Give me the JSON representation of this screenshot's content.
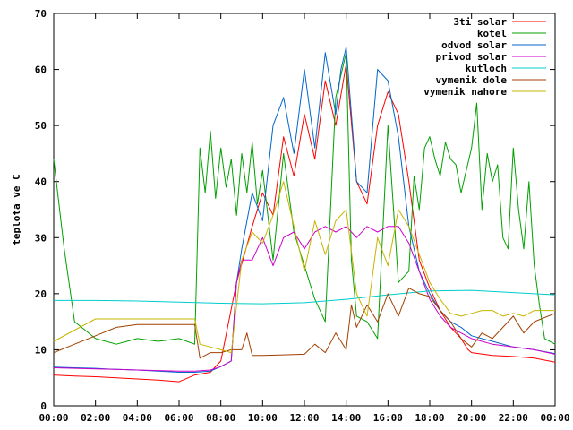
{
  "chart_data": {
    "type": "line",
    "title": "",
    "xlabel": "",
    "ylabel": "teplota ve C",
    "xlim": [
      "00:00",
      "24:00"
    ],
    "ylim": [
      0,
      70
    ],
    "x_ticks": [
      "00:00",
      "02:00",
      "04:00",
      "06:00",
      "08:00",
      "10:00",
      "12:00",
      "14:00",
      "16:00",
      "18:00",
      "20:00",
      "22:00",
      "00:00"
    ],
    "y_ticks": [
      "0",
      "10",
      "20",
      "30",
      "40",
      "50",
      "60",
      "70"
    ],
    "grid": false,
    "legend_position": "top-right",
    "series": [
      {
        "name": "3ti solar",
        "color": "#ff0000",
        "x": [
          "00:00",
          "01:00",
          "02:00",
          "03:00",
          "04:00",
          "05:00",
          "06:00",
          "06:45",
          "07:30",
          "08:00",
          "08:45",
          "09:30",
          "10:00",
          "10:30",
          "11:00",
          "11:30",
          "12:00",
          "12:30",
          "13:00",
          "13:30",
          "14:00",
          "14:30",
          "15:00",
          "15:30",
          "16:00",
          "16:30",
          "17:00",
          "17:30",
          "18:00",
          "18:30",
          "19:00",
          "19:30",
          "19:50",
          "20:00",
          "21:00",
          "22:00",
          "23:00",
          "24:00"
        ],
        "y": [
          5.5,
          5.3,
          5.2,
          5.0,
          4.8,
          4.6,
          4.3,
          5.5,
          6.0,
          8,
          22,
          32,
          38,
          34,
          48,
          41,
          52,
          44,
          58,
          50,
          61,
          40,
          36,
          50,
          56,
          52,
          40,
          26,
          21,
          17,
          14,
          12,
          10,
          9.5,
          9.0,
          8.8,
          8.5,
          7.8
        ]
      },
      {
        "name": "kotel",
        "color": "#00a000",
        "x": [
          "00:00",
          "00:30",
          "01:00",
          "02:00",
          "03:00",
          "04:00",
          "05:00",
          "06:00",
          "06:45",
          "07:00",
          "07:15",
          "07:30",
          "07:45",
          "08:00",
          "08:15",
          "08:30",
          "08:45",
          "09:00",
          "09:15",
          "09:30",
          "09:45",
          "10:00",
          "10:30",
          "11:00",
          "11:30",
          "12:00",
          "12:30",
          "13:00",
          "13:30",
          "14:00",
          "14:15",
          "14:30",
          "15:00",
          "15:30",
          "16:00",
          "16:30",
          "17:00",
          "17:15",
          "17:30",
          "17:45",
          "18:00",
          "18:15",
          "18:30",
          "18:45",
          "19:00",
          "19:15",
          "19:30",
          "19:45",
          "20:00",
          "20:15",
          "20:30",
          "20:45",
          "21:00",
          "21:15",
          "21:30",
          "21:45",
          "22:00",
          "22:15",
          "22:30",
          "22:45",
          "23:00",
          "23:15",
          "23:30",
          "24:00"
        ],
        "y": [
          44,
          28,
          15,
          12,
          11,
          12,
          11.5,
          12,
          11,
          46,
          38,
          49,
          37,
          46,
          39,
          44,
          34,
          45,
          38,
          47,
          36,
          42,
          26,
          45,
          31,
          25,
          19,
          15,
          55,
          63,
          26,
          16,
          15,
          12,
          50,
          22,
          24,
          41,
          35,
          46,
          48,
          44,
          41,
          47,
          44,
          43,
          38,
          42,
          46,
          54,
          35,
          45,
          40,
          43,
          30,
          28,
          46,
          35,
          28,
          40,
          25,
          18,
          12,
          11
        ]
      },
      {
        "name": "odvod solar",
        "color": "#0066cc",
        "x": [
          "00:00",
          "01:00",
          "02:00",
          "03:00",
          "04:00",
          "05:00",
          "06:00",
          "06:45",
          "07:30",
          "08:00",
          "08:30",
          "08:45",
          "09:00",
          "09:30",
          "10:00",
          "10:30",
          "11:00",
          "11:30",
          "12:00",
          "12:30",
          "13:00",
          "13:30",
          "13:45",
          "14:00",
          "14:30",
          "15:00",
          "15:30",
          "16:00",
          "16:30",
          "17:00",
          "17:30",
          "18:00",
          "18:30",
          "19:00",
          "19:30",
          "20:00",
          "21:00",
          "22:00",
          "23:00",
          "24:00"
        ],
        "y": [
          6.9,
          6.8,
          6.7,
          6.5,
          6.4,
          6.2,
          6.0,
          6.0,
          6.2,
          7,
          8,
          22,
          28,
          38,
          33,
          50,
          55,
          45,
          60,
          46,
          63,
          52,
          60,
          64,
          40,
          38,
          60,
          58,
          48,
          32,
          24,
          20,
          17,
          15,
          14,
          12.5,
          11.5,
          10.5,
          10,
          9.3
        ]
      },
      {
        "name": "privod solar",
        "color": "#cc00cc",
        "x": [
          "00:00",
          "01:00",
          "02:00",
          "03:00",
          "04:00",
          "05:00",
          "06:00",
          "06:45",
          "07:30",
          "08:00",
          "08:30",
          "08:45",
          "09:00",
          "09:30",
          "10:00",
          "10:30",
          "11:00",
          "11:30",
          "12:00",
          "12:30",
          "13:00",
          "13:30",
          "14:00",
          "14:30",
          "15:00",
          "15:30",
          "16:00",
          "16:30",
          "17:00",
          "17:30",
          "18:00",
          "18:30",
          "19:00",
          "19:30",
          "20:00",
          "21:00",
          "22:00",
          "23:00",
          "24:00"
        ],
        "y": [
          6.8,
          6.7,
          6.6,
          6.5,
          6.4,
          6.3,
          6.2,
          6.2,
          6.4,
          7,
          8,
          22,
          26,
          26,
          30,
          25,
          30,
          31,
          28,
          31,
          32,
          31,
          32,
          30,
          32,
          31,
          32,
          32,
          29,
          24,
          19,
          16,
          14,
          13,
          12,
          11,
          10.5,
          10,
          9.2
        ]
      },
      {
        "name": "kutloch",
        "color": "#00cccc",
        "x": [
          "00:00",
          "02:00",
          "04:00",
          "06:00",
          "08:00",
          "10:00",
          "12:00",
          "14:00",
          "16:00",
          "18:00",
          "20:00",
          "22:00",
          "24:00"
        ],
        "y": [
          18.8,
          18.8,
          18.7,
          18.5,
          18.3,
          18.2,
          18.4,
          19.0,
          19.8,
          20.5,
          20.6,
          20.2,
          19.8
        ]
      },
      {
        "name": "vymenik dole",
        "color": "#a04000",
        "x": [
          "00:00",
          "01:00",
          "02:00",
          "03:00",
          "04:00",
          "05:00",
          "06:00",
          "06:45",
          "07:00",
          "07:30",
          "08:00",
          "08:30",
          "09:00",
          "09:15",
          "09:30",
          "10:00",
          "11:00",
          "12:00",
          "12:30",
          "13:00",
          "13:30",
          "14:00",
          "14:15",
          "14:30",
          "15:00",
          "15:30",
          "16:00",
          "16:30",
          "17:00",
          "17:30",
          "18:00",
          "18:30",
          "19:00",
          "19:30",
          "20:00",
          "20:30",
          "21:00",
          "21:30",
          "22:00",
          "22:30",
          "23:00",
          "24:00"
        ],
        "y": [
          9.5,
          11,
          12.5,
          14,
          14.5,
          14.5,
          14.5,
          14.5,
          8.5,
          9.5,
          9.5,
          10,
          10,
          13,
          9.0,
          9.0,
          9.1,
          9.2,
          11,
          9.5,
          13,
          10,
          18,
          14,
          18,
          15,
          20,
          16,
          21,
          20,
          19.5,
          17,
          15,
          12,
          10.5,
          13,
          12,
          14,
          16,
          13,
          15,
          16.5
        ]
      },
      {
        "name": "vymenik nahore",
        "color": "#c8b400",
        "x": [
          "00:00",
          "01:00",
          "02:00",
          "03:00",
          "04:00",
          "05:00",
          "06:00",
          "06:45",
          "07:00",
          "07:30",
          "08:00",
          "08:30",
          "09:00",
          "09:30",
          "10:00",
          "10:30",
          "11:00",
          "11:30",
          "12:00",
          "12:30",
          "13:00",
          "13:30",
          "14:00",
          "14:30",
          "15:00",
          "15:30",
          "16:00",
          "16:30",
          "17:00",
          "17:30",
          "18:00",
          "18:30",
          "19:00",
          "19:30",
          "20:00",
          "20:30",
          "21:00",
          "21:30",
          "22:00",
          "22:30",
          "23:00",
          "24:00"
        ],
        "y": [
          11.5,
          13.5,
          15.5,
          15.5,
          15.5,
          15.5,
          15.5,
          15.5,
          11,
          10.5,
          10,
          9.5,
          26,
          31,
          29,
          34,
          40,
          32,
          24,
          33,
          27,
          33,
          35,
          20,
          16,
          30,
          25,
          35,
          32,
          27,
          22,
          19,
          16.5,
          16,
          16.5,
          17,
          17,
          16,
          16.5,
          16,
          17,
          17
        ]
      }
    ]
  }
}
